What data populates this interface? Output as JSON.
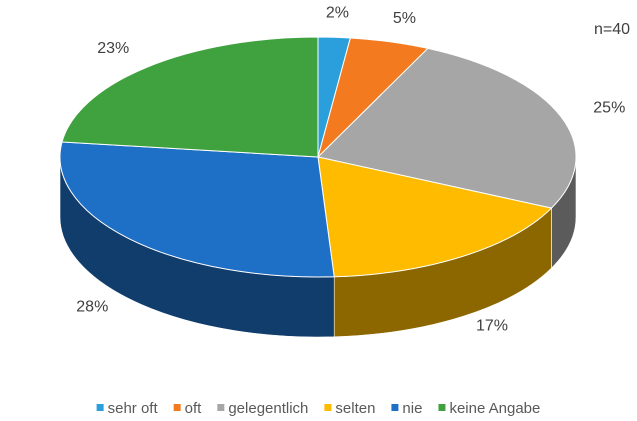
{
  "chart_data": {
    "type": "pie",
    "annotation": "n=40",
    "categories": [
      "sehr oft",
      "oft",
      "gelegentlich",
      "selten",
      "nie",
      "keine Angabe"
    ],
    "values": [
      2,
      5,
      25,
      17,
      28,
      23
    ],
    "value_labels": [
      "2%",
      "5%",
      "25%",
      "17%",
      "28%",
      "23%"
    ],
    "colors": [
      "#2a9fdb",
      "#f47a1f",
      "#a6a6a6",
      "#ffbb00",
      "#1e6fc6",
      "#40a23e"
    ],
    "legend": "bottom"
  }
}
